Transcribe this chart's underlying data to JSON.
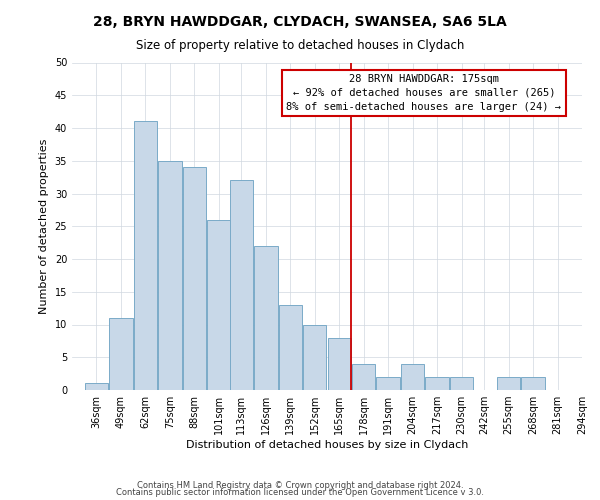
{
  "title": "28, BRYN HAWDDGAR, CLYDACH, SWANSEA, SA6 5LA",
  "subtitle": "Size of property relative to detached houses in Clydach",
  "xlabel": "Distribution of detached houses by size in Clydach",
  "ylabel": "Number of detached properties",
  "bar_labels": [
    "36sqm",
    "49sqm",
    "62sqm",
    "75sqm",
    "88sqm",
    "101sqm",
    "113sqm",
    "126sqm",
    "139sqm",
    "152sqm",
    "165sqm",
    "178sqm",
    "191sqm",
    "204sqm",
    "217sqm",
    "230sqm",
    "242sqm",
    "255sqm",
    "268sqm",
    "281sqm",
    "294sqm"
  ],
  "bar_values": [
    1,
    11,
    41,
    35,
    34,
    26,
    32,
    22,
    13,
    10,
    8,
    4,
    2,
    4,
    2,
    2,
    0,
    2,
    2,
    0,
    0
  ],
  "bar_edges": [
    36,
    49,
    62,
    75,
    88,
    101,
    113,
    126,
    139,
    152,
    165,
    178,
    191,
    204,
    217,
    230,
    242,
    255,
    268,
    281,
    294
  ],
  "bar_color": "#c8d8e8",
  "bar_edgecolor": "#7aaac8",
  "vline_x": 178,
  "vline_color": "#cc0000",
  "annotation_title": "28 BRYN HAWDDGAR: 175sqm",
  "annotation_line1": "← 92% of detached houses are smaller (265)",
  "annotation_line2": "8% of semi-detached houses are larger (24) →",
  "annotation_box_color": "#ffffff",
  "annotation_box_edgecolor": "#cc0000",
  "ylim": [
    0,
    50
  ],
  "yticks": [
    0,
    5,
    10,
    15,
    20,
    25,
    30,
    35,
    40,
    45,
    50
  ],
  "footer1": "Contains HM Land Registry data © Crown copyright and database right 2024.",
  "footer2": "Contains public sector information licensed under the Open Government Licence v 3.0.",
  "title_fontsize": 10,
  "subtitle_fontsize": 8.5,
  "axis_label_fontsize": 8,
  "tick_fontsize": 7,
  "annotation_fontsize": 7.5,
  "footer_fontsize": 6
}
